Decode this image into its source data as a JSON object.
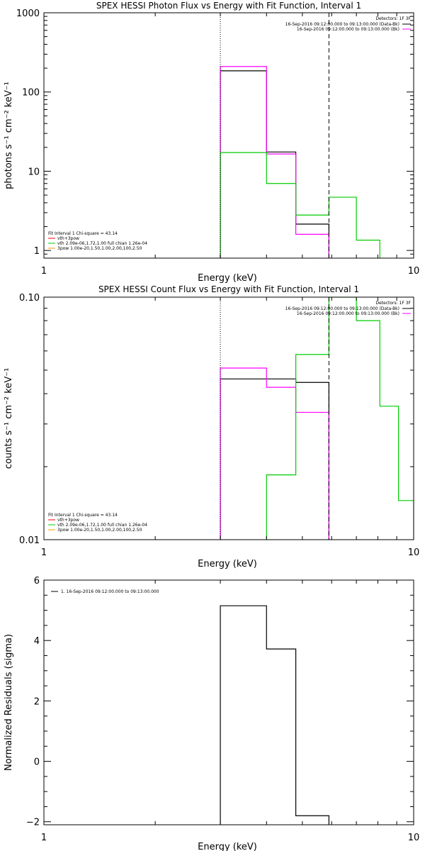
{
  "chart_data": [
    {
      "type": "line",
      "step": true,
      "title": "SPEX HESSI Photon Flux vs Energy with Fit Function, Interval 1",
      "xlabel": "Energy (keV)",
      "ylabel": "photons s⁻¹ cm⁻² keV⁻¹",
      "xscale": "log",
      "yscale": "log",
      "xlim": [
        1,
        10
      ],
      "ylim": [
        0.8,
        1000
      ],
      "x_ticks": [
        {
          "v": 1,
          "label": "1"
        },
        {
          "v": 10,
          "label": "10"
        }
      ],
      "y_ticks": [
        {
          "v": 1,
          "label": "1"
        },
        {
          "v": 10,
          "label": "10"
        },
        {
          "v": 100,
          "label": "100"
        },
        {
          "v": 1000,
          "label": "1000"
        }
      ],
      "vlines": [
        {
          "x": 3.0,
          "style": "dotted"
        },
        {
          "x": 5.9,
          "style": "dashed"
        }
      ],
      "legend_top": {
        "position": "top-right",
        "header": "Detectors: 1F 3F",
        "entries": [
          {
            "text": "16-Sep-2016 09:12:00.000 to 09:13:00.000 (Data-Bk)",
            "color": "#000000"
          },
          {
            "text": "16-Sep-2016 09:12:00.000 to 09:13:00.000 (Bk)",
            "color": "#ff00ff"
          }
        ]
      },
      "legend_fit": {
        "position": "bottom-left",
        "header": "Fit Interval 1    Chi-square = 43.14",
        "entries": [
          {
            "text": "vth+3pow",
            "color": "#ff0000"
          },
          {
            "text": "vth 2.09e-06,1.72,1.00  full chian 1.26e-04",
            "color": "#00cc00"
          },
          {
            "text": "3pow 1.00e-20,1.50,1.00,2.00,100,2.50",
            "color": "#ff9900"
          }
        ]
      },
      "series": [
        {
          "color": "#000000",
          "edges": [
            3.0,
            4.0,
            4.8,
            5.9
          ],
          "values": [
            185,
            17.5,
            2.15
          ]
        },
        {
          "color": "#ff00ff",
          "edges": [
            3.0,
            4.0,
            4.8,
            5.9
          ],
          "values": [
            210,
            16.5,
            1.6
          ]
        },
        {
          "color": "#00cc00",
          "edges": [
            3.0,
            4.0,
            4.8,
            5.9,
            7.0,
            8.1
          ],
          "values": [
            17.2,
            7.0,
            2.8,
            4.7,
            1.35
          ]
        }
      ]
    },
    {
      "type": "line",
      "step": true,
      "title": "SPEX HESSI Count Flux vs Energy with Fit Function, Interval 1",
      "xlabel": "Energy (keV)",
      "ylabel": "counts s⁻¹ cm⁻² keV⁻¹",
      "xscale": "log",
      "yscale": "log",
      "xlim": [
        1,
        10
      ],
      "ylim": [
        0.01,
        0.1
      ],
      "x_ticks": [
        {
          "v": 1,
          "label": "1"
        },
        {
          "v": 10,
          "label": "10"
        }
      ],
      "y_ticks": [
        {
          "v": 0.01,
          "label": "0.01"
        },
        {
          "v": 0.1,
          "label": "0.10"
        }
      ],
      "vlines": [
        {
          "x": 3.0,
          "style": "dotted"
        },
        {
          "x": 5.9,
          "style": "dashed"
        }
      ],
      "legend_top": {
        "position": "top-right",
        "header": "Detectors: 1F 3F",
        "entries": [
          {
            "text": "16-Sep-2016 09:12:00.000 to 09:13:00.000 (Data-Bk)",
            "color": "#000000"
          },
          {
            "text": "16-Sep-2016 09:12:00.000 to 09:13:00.000 (Bk)",
            "color": "#ff00ff"
          }
        ]
      },
      "legend_fit": {
        "position": "bottom-left",
        "header": "Fit Interval 1    Chi-square = 43.14",
        "entries": [
          {
            "text": "vth+3pow",
            "color": "#ff0000"
          },
          {
            "text": "vth 2.09e-06,1.72,1.00  full chian 1.26e-04",
            "color": "#00cc00"
          },
          {
            "text": "3pow 1.00e-20,1.50,1.00,2.00,100,2.50",
            "color": "#ff9900"
          }
        ]
      },
      "series": [
        {
          "color": "#000000",
          "edges": [
            3.0,
            4.0,
            4.8,
            5.9
          ],
          "values": [
            0.046,
            0.046,
            0.0445
          ]
        },
        {
          "color": "#ff00ff",
          "edges": [
            3.0,
            4.0,
            4.8,
            5.9
          ],
          "values": [
            0.051,
            0.0425,
            0.0335
          ]
        },
        {
          "color": "#00cc00",
          "edges": [
            4.0,
            4.8,
            5.9,
            7.0,
            8.1,
            9.1,
            10.0
          ],
          "values": [
            0.0185,
            0.058,
            0.1,
            0.08,
            0.0355,
            0.0145
          ]
        }
      ]
    },
    {
      "type": "line",
      "step": true,
      "title": "",
      "xlabel": "Energy (keV)",
      "ylabel": "Normalized Residuals (sigma)",
      "xscale": "log",
      "yscale": "linear",
      "xlim": [
        1,
        10
      ],
      "ylim": [
        -2.1,
        6
      ],
      "x_ticks": [
        {
          "v": 1,
          "label": "1"
        },
        {
          "v": 10,
          "label": "10"
        }
      ],
      "y_ticks": [
        {
          "v": -2,
          "label": "−2"
        },
        {
          "v": 0,
          "label": "0"
        },
        {
          "v": 2,
          "label": "2"
        },
        {
          "v": 4,
          "label": "4"
        },
        {
          "v": 6,
          "label": "6"
        }
      ],
      "vlines": [],
      "legend_top": {
        "position": "top-left",
        "header": "",
        "entries": [
          {
            "text": "1. 16-Sep-2016 09:12:00.000 to 09:13:00.000",
            "color": "#000000"
          }
        ]
      },
      "legend_fit": null,
      "series": [
        {
          "color": "#000000",
          "edges": [
            3.0,
            4.0,
            4.8,
            5.9
          ],
          "values": [
            5.15,
            3.72,
            -1.8
          ],
          "drop_to_floor": true
        }
      ]
    }
  ]
}
